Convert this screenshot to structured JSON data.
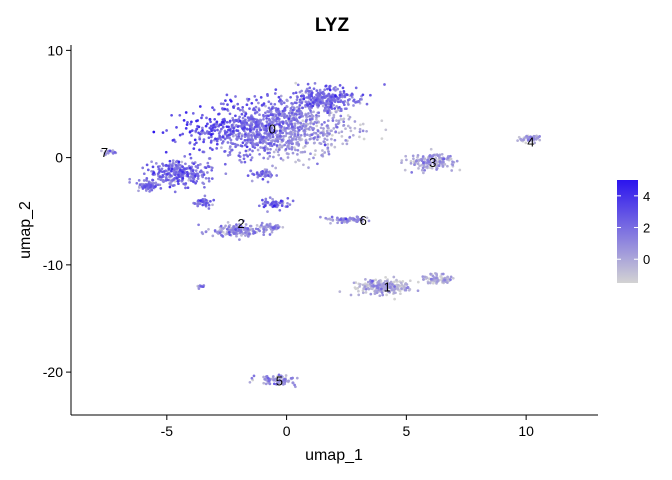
{
  "chart_data": {
    "type": "scatter",
    "title": "LYZ",
    "xlabel": "umap_1",
    "ylabel": "umap_2",
    "xlim": [
      -9,
      13
    ],
    "ylim": [
      -24,
      10.5
    ],
    "xticks": [
      -5,
      0,
      5,
      10
    ],
    "yticks": [
      -20,
      -10,
      0,
      10
    ],
    "grid": false,
    "color_scale": {
      "low_color": "#d3d3d3",
      "high_color": "#2b14ee",
      "range": [
        -1.5,
        5
      ],
      "ticks": [
        0,
        2,
        4
      ]
    },
    "legend_position": "right",
    "clusters": [
      {
        "label": "0",
        "center": [
          -0.6,
          2.7
        ],
        "expression_level": 1.6
      },
      {
        "label": "1",
        "center": [
          4.2,
          -12.0
        ],
        "expression_level": -0.5
      },
      {
        "label": "2",
        "center": [
          -1.9,
          -6.1
        ],
        "expression_level": 0.6
      },
      {
        "label": "3",
        "center": [
          6.1,
          -0.4
        ],
        "expression_level": 0.0
      },
      {
        "label": "4",
        "center": [
          10.2,
          1.5
        ],
        "expression_level": 0.3
      },
      {
        "label": "5",
        "center": [
          -0.3,
          -20.8
        ],
        "expression_level": 0.2
      },
      {
        "label": "6",
        "center": [
          3.2,
          -5.8
        ],
        "expression_level": 0.4
      },
      {
        "label": "7",
        "center": [
          -7.6,
          0.5
        ],
        "expression_level": 0.3
      }
    ]
  }
}
